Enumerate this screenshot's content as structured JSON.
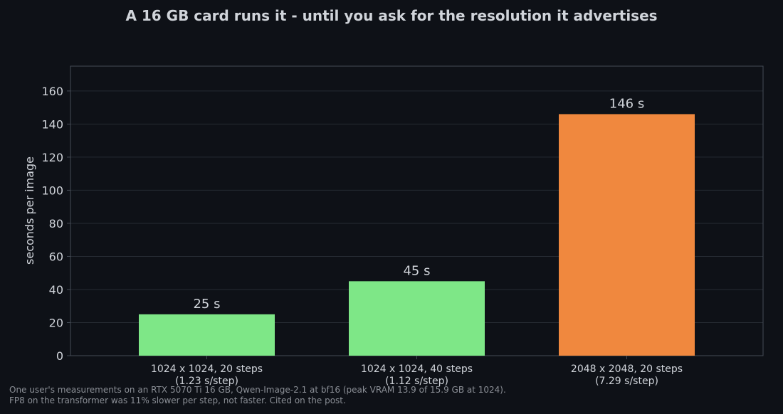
{
  "chart_data": {
    "type": "bar",
    "title": "A 16 GB card runs it - until you ask for the resolution it advertises",
    "xlabel": "",
    "ylabel": "seconds per image",
    "ylim": [
      0,
      175
    ],
    "yticks": [
      0,
      20,
      40,
      60,
      80,
      100,
      120,
      140,
      160
    ],
    "grid": true,
    "categories": [
      [
        "1024 x 1024, 20 steps",
        "(1.23 s/step)"
      ],
      [
        "1024 x 1024, 40 steps",
        "(1.12 s/step)"
      ],
      [
        "2048 x 2048, 20 steps",
        "(7.29 s/step)"
      ]
    ],
    "values": [
      25,
      45,
      146
    ],
    "value_labels": [
      "25 s",
      "45 s",
      "146 s"
    ],
    "bar_colors": [
      "#7ee787",
      "#7ee787",
      "#f0883e"
    ]
  },
  "colors": {
    "background": "#0e1117",
    "grid": "#262b33",
    "axis": "#444b55",
    "text": "#d0d4da",
    "muted": "#8b8f96"
  },
  "footnote": [
    "One user's measurements on an RTX 5070 Ti 16 GB, Qwen-Image-2.1 at bf16 (peak VRAM 13.9 of 15.9 GB at 1024).",
    "FP8 on the transformer was 11% slower per step, not faster. Cited on the post."
  ]
}
